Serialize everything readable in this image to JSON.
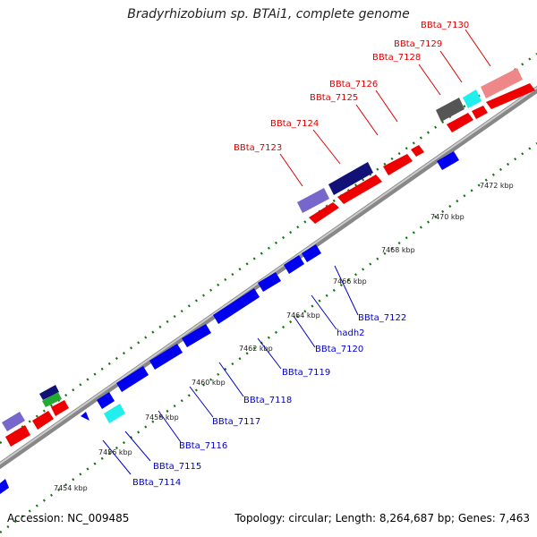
{
  "title": "Bradyrhizobium sp. BTAi1, complete genome",
  "footer": {
    "accession": "Accession: NC_009485",
    "topology": "Topology: circular; Length: 8,264,687 bp; Genes: 7,463"
  },
  "colors": {
    "red": "#ee0000",
    "blue": "#0000ee",
    "cyan": "#22eeee",
    "navy": "#111177",
    "lavender": "#7766cc",
    "gray": "#555555",
    "pink": "#ee8888",
    "green": "#22aa33",
    "backbone": "#999999",
    "tick_green": "#117711"
  },
  "kbp_ticks": [
    "7454 kbp",
    "7456 kbp",
    "7458 kbp",
    "7460 kbp",
    "7462 kbp",
    "7464 kbp",
    "7466 kbp",
    "7468 kbp",
    "7470 kbp",
    "7472 kbp"
  ],
  "red_labels": [
    "BBta_7123",
    "BBta_7124",
    "BBta_7125",
    "BBta_7126",
    "BBta_7128",
    "BBta_7129",
    "BBta_7130"
  ],
  "blue_labels": [
    "BBta_7114",
    "BBta_7115",
    "BBta_7116",
    "BBta_7117",
    "BBta_7118",
    "BBta_7119",
    "BBta_7120",
    "hadh2",
    "BBta_7122"
  ]
}
